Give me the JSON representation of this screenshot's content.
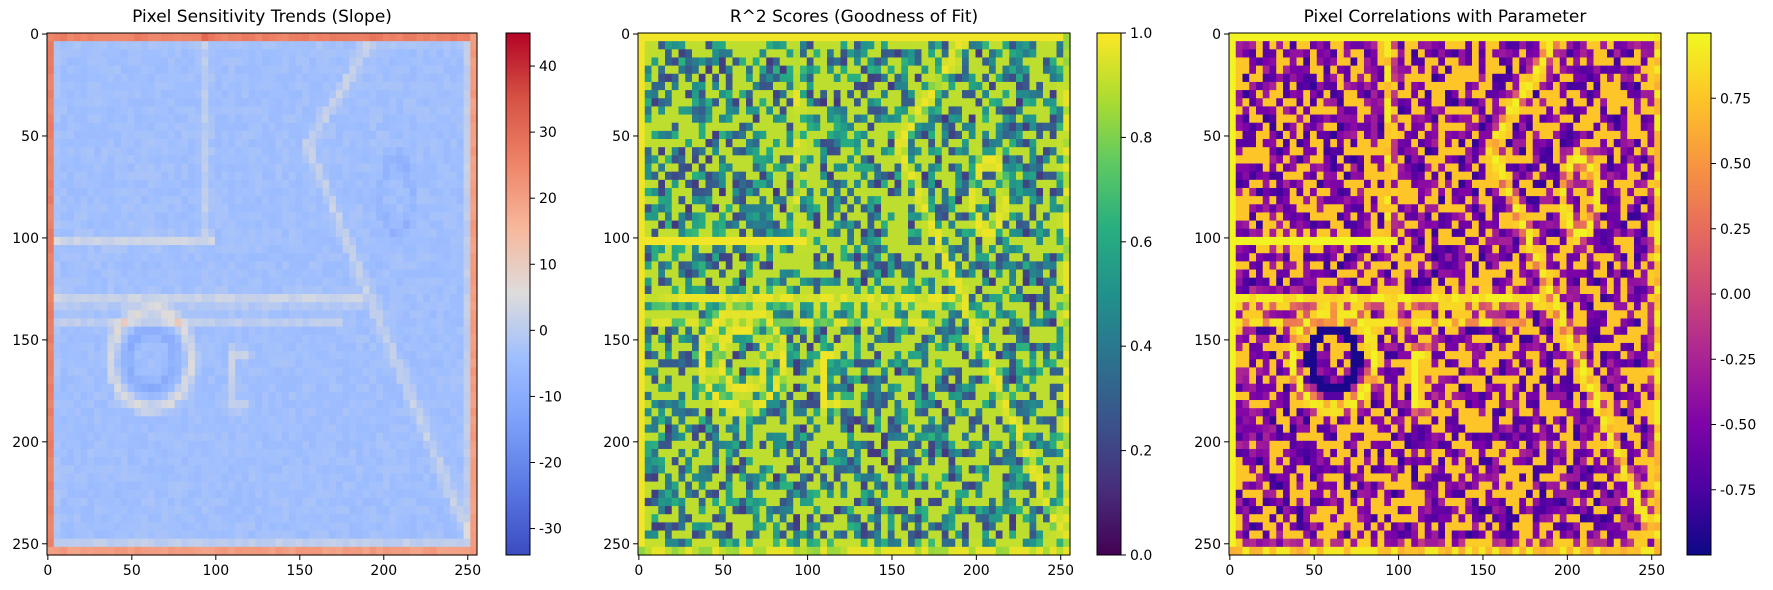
{
  "chart_data": [
    {
      "type": "heatmap",
      "title": "Pixel Sensitivity Trends (Slope)",
      "colormap": "coolwarm",
      "image_shape": [
        256,
        256
      ],
      "x_ticks": [
        0,
        50,
        100,
        150,
        200,
        250
      ],
      "y_ticks": [
        0,
        50,
        100,
        150,
        200,
        250
      ],
      "colorbar": {
        "range": [
          -34,
          45
        ],
        "ticks": [
          40,
          30,
          20,
          10,
          0,
          -10,
          -20,
          -30
        ]
      },
      "features": {
        "border_value": 28,
        "background_value": -4,
        "circle_value": 9,
        "ring_value": -12,
        "bar_value": 8
      }
    },
    {
      "type": "heatmap",
      "title": "R^2 Scores (Goodness of Fit)",
      "colormap": "viridis",
      "image_shape": [
        256,
        256
      ],
      "x_ticks": [
        0,
        50,
        100,
        150,
        200,
        250
      ],
      "y_ticks": [
        0,
        50,
        100,
        150,
        200,
        250
      ],
      "colorbar": {
        "range": [
          0.0,
          1.0
        ],
        "ticks": [
          1.0,
          0.8,
          0.6,
          0.4,
          0.2,
          0.0
        ]
      },
      "features": {
        "edge_value": 0.98,
        "background_value": 0.45
      }
    },
    {
      "type": "heatmap",
      "title": "Pixel Correlations with Parameter",
      "colormap": "plasma",
      "image_shape": [
        256,
        256
      ],
      "x_ticks": [
        0,
        50,
        100,
        150,
        200,
        250
      ],
      "y_ticks": [
        0,
        50,
        100,
        150,
        200,
        250
      ],
      "colorbar": {
        "range": [
          -1.0,
          1.0
        ],
        "ticks": [
          0.75,
          0.5,
          0.25,
          0.0,
          -0.25,
          -0.5,
          -0.75
        ]
      },
      "features": {
        "edge_value": 0.97,
        "background_value": -0.2
      }
    }
  ]
}
